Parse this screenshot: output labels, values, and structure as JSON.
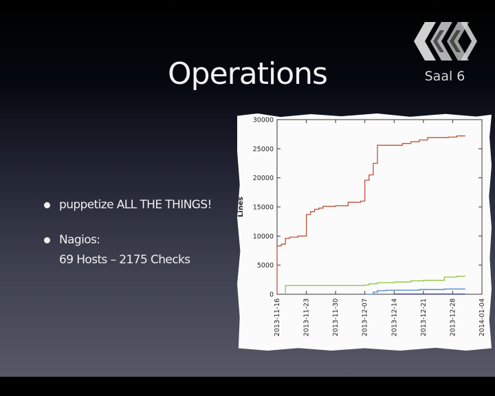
{
  "slide": {
    "title": "Operations",
    "room_label": "Saal 6",
    "bullets": [
      {
        "lines": [
          "puppetize ALL THE THINGS!"
        ]
      },
      {
        "lines": [
          "Nagios:",
          "69 Hosts – 2175 Checks"
        ]
      }
    ]
  },
  "chart_data": {
    "type": "line",
    "xlabel": "",
    "ylabel": "Lines",
    "ylim": [
      0,
      30000
    ],
    "yticks": [
      0,
      5000,
      10000,
      15000,
      20000,
      25000,
      30000
    ],
    "xlim": [
      "2013-11-16",
      "2014-01-04"
    ],
    "xticks": [
      "2013-11-16",
      "2013-11-23",
      "2013-11-30",
      "2013-12-07",
      "2013-12-14",
      "2013-12-21",
      "2013-12-28",
      "2014-01-04"
    ],
    "grid": false,
    "series": [
      {
        "color": "#c0503a",
        "step": true,
        "points": [
          [
            "2013-11-16",
            0
          ],
          [
            "2013-11-16",
            8300
          ],
          [
            "2013-11-17",
            8600
          ],
          [
            "2013-11-17",
            8600
          ],
          [
            "2013-11-18",
            9600
          ],
          [
            "2013-11-19",
            9800
          ],
          [
            "2013-11-21",
            10000
          ],
          [
            "2013-11-23",
            10200
          ],
          [
            "2013-11-23",
            13700
          ],
          [
            "2013-11-24",
            14200
          ],
          [
            "2013-11-25",
            14600
          ],
          [
            "2013-11-26",
            14800
          ],
          [
            "2013-11-27",
            15100
          ],
          [
            "2013-11-30",
            15200
          ],
          [
            "2013-12-02",
            15200
          ],
          [
            "2013-12-03",
            15800
          ],
          [
            "2013-12-06",
            16000
          ],
          [
            "2013-12-07",
            16200
          ],
          [
            "2013-12-07",
            19600
          ],
          [
            "2013-12-08",
            20500
          ],
          [
            "2013-12-09",
            22500
          ],
          [
            "2013-12-10",
            25600
          ],
          [
            "2013-12-14",
            25600
          ],
          [
            "2013-12-16",
            25900
          ],
          [
            "2013-12-18",
            26200
          ],
          [
            "2013-12-20",
            26500
          ],
          [
            "2013-12-22",
            26900
          ],
          [
            "2013-12-27",
            27000
          ],
          [
            "2013-12-29",
            27200
          ],
          [
            "2013-12-31",
            27200
          ]
        ]
      },
      {
        "color": "#8cc63a",
        "step": true,
        "points": [
          [
            "2013-11-18",
            0
          ],
          [
            "2013-11-18",
            1500
          ],
          [
            "2013-12-07",
            1600
          ],
          [
            "2013-12-08",
            1800
          ],
          [
            "2013-12-10",
            2000
          ],
          [
            "2013-12-14",
            2100
          ],
          [
            "2013-12-18",
            2300
          ],
          [
            "2013-12-21",
            2400
          ],
          [
            "2013-12-26",
            2600
          ],
          [
            "2013-12-26",
            2950
          ],
          [
            "2013-12-29",
            3100
          ],
          [
            "2013-12-31",
            3100
          ]
        ]
      },
      {
        "color": "#4a7ec8",
        "step": true,
        "points": [
          [
            "2013-12-07",
            0
          ],
          [
            "2013-12-09",
            350
          ],
          [
            "2013-12-10",
            600
          ],
          [
            "2013-12-12",
            700
          ],
          [
            "2013-12-20",
            700
          ],
          [
            "2013-12-20",
            800
          ],
          [
            "2013-12-26",
            900
          ],
          [
            "2013-12-31",
            900
          ]
        ]
      },
      {
        "color": "#3a3aa8",
        "step": true,
        "points": [
          [
            "2013-12-14",
            50
          ],
          [
            "2013-12-31",
            50
          ]
        ]
      }
    ]
  },
  "colors": {
    "title": "#f2f2f2",
    "text": "#f0f0f0",
    "logo": "#d0d0d0",
    "paper": "#fbfbfb"
  }
}
